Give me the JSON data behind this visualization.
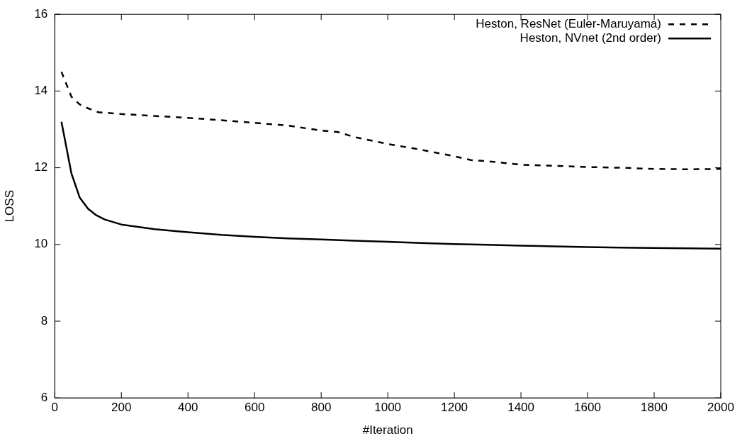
{
  "chart_data": {
    "type": "line",
    "xlabel": "#Iteration",
    "ylabel": "LOSS",
    "xlim": [
      0,
      2000
    ],
    "ylim": [
      6,
      16
    ],
    "xticks": [
      0,
      200,
      400,
      600,
      800,
      1000,
      1200,
      1400,
      1600,
      1800,
      2000
    ],
    "yticks": [
      6,
      8,
      10,
      12,
      14,
      16
    ],
    "grid": false,
    "legend": "top right",
    "marker": "none",
    "series": [
      {
        "name": "Heston, ResNet (Euler-Maruyama)",
        "color": "#000000",
        "line_style": "dashed",
        "x": [
          20,
          50,
          75,
          100,
          130,
          200,
          300,
          400,
          500,
          600,
          700,
          800,
          850,
          900,
          1000,
          1100,
          1200,
          1250,
          1300,
          1400,
          1500,
          1600,
          1700,
          1800,
          1900,
          2000
        ],
        "values": [
          14.5,
          13.85,
          13.65,
          13.55,
          13.45,
          13.4,
          13.35,
          13.3,
          13.24,
          13.17,
          13.1,
          12.97,
          12.93,
          12.8,
          12.62,
          12.47,
          12.3,
          12.2,
          12.17,
          12.08,
          12.05,
          12.02,
          12.0,
          11.97,
          11.96,
          11.97
        ]
      },
      {
        "name": "Heston, NVnet (2nd order)",
        "color": "#000000",
        "line_style": "solid",
        "x": [
          20,
          50,
          75,
          100,
          125,
          150,
          200,
          250,
          300,
          400,
          500,
          600,
          700,
          800,
          900,
          1000,
          1100,
          1200,
          1300,
          1400,
          1500,
          1600,
          1700,
          1800,
          1900,
          2000
        ],
        "values": [
          13.2,
          11.85,
          11.22,
          10.93,
          10.76,
          10.65,
          10.52,
          10.46,
          10.4,
          10.32,
          10.25,
          10.2,
          10.16,
          10.13,
          10.1,
          10.07,
          10.04,
          10.01,
          9.99,
          9.97,
          9.95,
          9.93,
          9.92,
          9.91,
          9.9,
          9.89
        ]
      }
    ]
  }
}
